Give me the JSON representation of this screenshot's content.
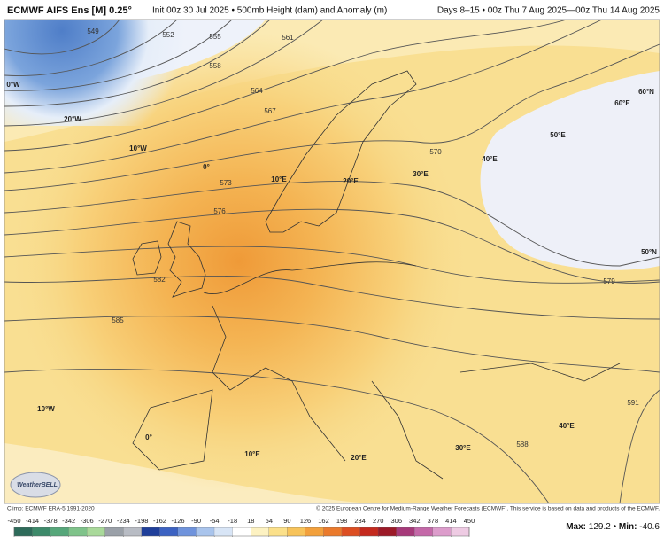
{
  "header": {
    "model": "ECMWF AIFS Ens [M] 0.25°",
    "subtitle": "Init 00z 30 Jul 2025 • 500mb Height (dam) and Anomaly (m)",
    "period": "Days 8–15 • 00z Thu 7 Aug 2025—00z Thu 14 Aug 2025"
  },
  "contour_labels": [
    "549",
    "552",
    "555",
    "558",
    "561",
    "564",
    "567",
    "570",
    "573",
    "576",
    "579",
    "582",
    "585",
    "588",
    "591"
  ],
  "graticule_labels": [
    "0°W",
    "20°W",
    "10°W",
    "0°",
    "10°E",
    "20°E",
    "30°E",
    "40°E",
    "50°E",
    "60°E",
    "60°N",
    "50°N",
    "10°W",
    "0°",
    "10°E",
    "20°E",
    "30°E",
    "40°E"
  ],
  "logo": "WeatherBELL",
  "footer": {
    "climo": "Climo: ECMWF ERA-5 1991-2020",
    "copyright": "© 2025 European Centre for Medium-Range Weather Forecasts (ECMWF). This service is based on data and products of the ECMWF."
  },
  "colorbar": {
    "ticks": [
      -450,
      -414,
      -378,
      -342,
      -306,
      -270,
      -234,
      -198,
      -162,
      -126,
      -90,
      -54,
      -18,
      18,
      54,
      90,
      126,
      162,
      198,
      234,
      270,
      306,
      342,
      378,
      414,
      450
    ]
  },
  "stats": {
    "max_label": "Max:",
    "max": 129.2,
    "separator": "•",
    "min_label": "Min:",
    "min": -40.6
  }
}
